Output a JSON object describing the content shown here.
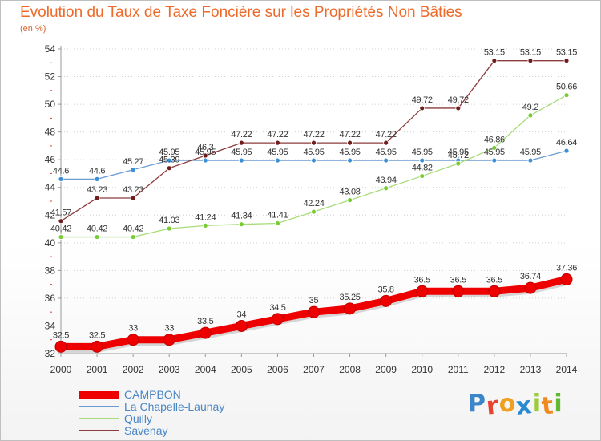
{
  "header": {
    "title": "Evolution du Taux de Taxe Foncière sur les Propriétés Non Bâties",
    "unit": "(en %)"
  },
  "brand": {
    "text": "Proxiti",
    "colors": [
      "#3a86c8",
      "#e8432f",
      "#f0a020",
      "#2a8ad0",
      "#9acb3a",
      "#ef8a20",
      "#62b832"
    ]
  },
  "chart_data": {
    "type": "line",
    "x": [
      2000,
      2001,
      2002,
      2003,
      2004,
      2005,
      2006,
      2007,
      2008,
      2009,
      2010,
      2011,
      2012,
      2013,
      2014
    ],
    "ylim": [
      32,
      54
    ],
    "yticks": [
      32,
      34,
      36,
      38,
      40,
      42,
      44,
      46,
      48,
      50,
      52,
      54
    ],
    "grid": "horizontal-dotted",
    "legend_position": "bottom-left",
    "series": [
      {
        "name": "CAMPBON",
        "color": "#ee0000",
        "marker_color": "#ee0000",
        "width": 9,
        "values": [
          32.5,
          32.5,
          33,
          33,
          33.5,
          34,
          34.5,
          35,
          35.25,
          35.8,
          36.5,
          36.5,
          36.5,
          36.74,
          37.36
        ],
        "labels": [
          "32.5",
          "32.5",
          "33",
          "33",
          "33.5",
          "34",
          "34.5",
          "35",
          "35.25",
          "35.8",
          "36.5",
          "36.5",
          "36.5",
          "36.74",
          "37.36"
        ]
      },
      {
        "name": "La Chapelle-Launay",
        "color": "#6c9bd2",
        "marker_color": "#3b8fd6",
        "width": 1.3,
        "values": [
          44.6,
          44.6,
          45.27,
          45.95,
          45.95,
          45.95,
          45.95,
          45.95,
          45.95,
          45.95,
          45.95,
          45.95,
          45.95,
          45.95,
          46.64
        ],
        "labels": [
          "44.6",
          "44.6",
          "45.27",
          "45.95",
          "45.95",
          "45.95",
          "45.95",
          "45.95",
          "45.95",
          "45.95",
          "45.95",
          "45.95",
          "45.95",
          "45.95",
          "46.64"
        ]
      },
      {
        "name": "Quilly",
        "color": "#a8dc7a",
        "marker_color": "#77cc33",
        "width": 1.3,
        "values": [
          40.42,
          40.42,
          40.42,
          41.03,
          41.24,
          41.34,
          41.41,
          42.24,
          43.08,
          43.94,
          44.82,
          45.72,
          46.86,
          49.2,
          50.66
        ],
        "labels": [
          "40.42",
          "40.42",
          "40.42",
          "41.03",
          "41.24",
          "41.34",
          "41.41",
          "42.24",
          "43.08",
          "43.94",
          "44.82",
          "45.72",
          "46.86",
          "49.2",
          "50.66"
        ]
      },
      {
        "name": "Savenay",
        "color": "#8c3c3c",
        "marker_color": "#6e1c1c",
        "width": 1.3,
        "values": [
          41.57,
          43.23,
          43.23,
          45.39,
          46.3,
          47.22,
          47.22,
          47.22,
          47.22,
          47.22,
          49.72,
          49.72,
          53.15,
          53.15,
          53.15
        ],
        "labels": [
          "41.57",
          "43.23",
          "43.23",
          "45.39",
          "46.3",
          "47.22",
          "47.22",
          "47.22",
          "47.22",
          "47.22",
          "49.72",
          "49.72",
          "53.15",
          "53.15",
          "53.15"
        ]
      }
    ]
  }
}
